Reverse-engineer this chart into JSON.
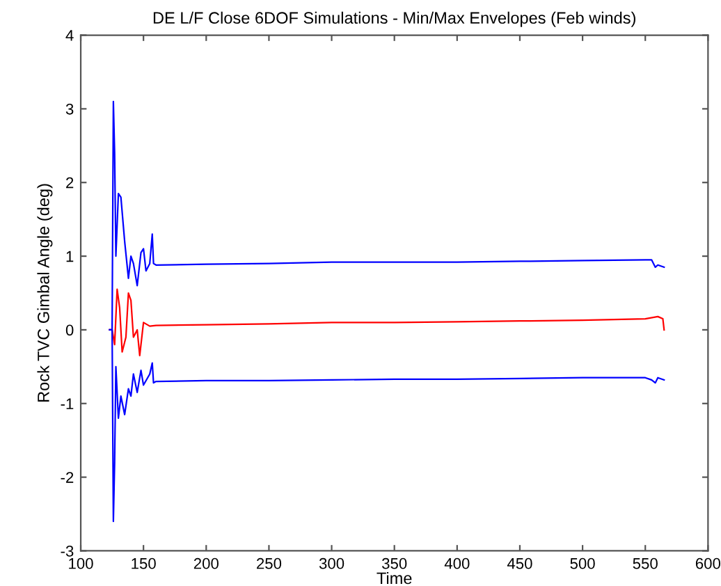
{
  "chart_data": {
    "type": "line",
    "title": "DE L/F Close 6DOF Simulations - Min/Max Envelopes (Feb winds)",
    "xlabel": "Time",
    "ylabel": "Rock TVC Gimbal Angle (deg)",
    "xlim": [
      100,
      600
    ],
    "xticks": [
      100,
      150,
      200,
      250,
      300,
      350,
      400,
      450,
      500,
      550,
      600
    ],
    "ylim": [
      -3,
      4
    ],
    "yticks": [
      -3,
      -2,
      -1,
      0,
      1,
      2,
      3,
      4
    ],
    "grid": false,
    "legend": false,
    "marker": "none",
    "line_style": "solid",
    "series": [
      {
        "color": "#0000ff",
        "x": [
          123,
          125,
          126,
          127,
          128,
          130,
          132,
          135,
          138,
          140,
          142,
          145,
          148,
          150,
          152,
          155,
          157,
          158,
          160,
          200,
          250,
          300,
          350,
          400,
          450,
          500,
          550,
          555,
          558,
          560,
          565
        ],
        "values": [
          0,
          0,
          3.1,
          2.4,
          1.0,
          1.85,
          1.8,
          1.2,
          0.7,
          1.0,
          0.9,
          0.6,
          1.05,
          1.1,
          0.8,
          0.9,
          1.3,
          0.9,
          0.88,
          0.89,
          0.9,
          0.92,
          0.92,
          0.92,
          0.93,
          0.94,
          0.95,
          0.95,
          0.85,
          0.88,
          0.85
        ]
      },
      {
        "color": "#ff0000",
        "x": [
          123,
          125,
          127,
          129,
          131,
          133,
          136,
          138,
          140,
          142,
          145,
          147,
          150,
          155,
          160,
          200,
          250,
          300,
          350,
          400,
          450,
          500,
          550,
          560,
          564,
          565
        ],
        "values": [
          0,
          0,
          -0.2,
          0.55,
          0.3,
          -0.3,
          -0.1,
          0.5,
          0.4,
          -0.1,
          0.0,
          -0.35,
          0.1,
          0.05,
          0.06,
          0.07,
          0.08,
          0.1,
          0.1,
          0.11,
          0.12,
          0.13,
          0.15,
          0.18,
          0.15,
          0.0
        ]
      },
      {
        "color": "#0000ff",
        "x": [
          123,
          125,
          126,
          127,
          128,
          130,
          132,
          135,
          138,
          140,
          142,
          145,
          148,
          150,
          155,
          157,
          158,
          160,
          200,
          250,
          300,
          350,
          400,
          450,
          500,
          550,
          555,
          558,
          560,
          565
        ],
        "values": [
          0,
          0,
          -2.6,
          -1.8,
          -0.5,
          -1.2,
          -0.9,
          -1.15,
          -0.8,
          -0.9,
          -0.6,
          -0.85,
          -0.55,
          -0.75,
          -0.6,
          -0.45,
          -0.72,
          -0.7,
          -0.69,
          -0.69,
          -0.68,
          -0.67,
          -0.67,
          -0.66,
          -0.65,
          -0.65,
          -0.68,
          -0.72,
          -0.65,
          -0.68
        ]
      }
    ]
  }
}
